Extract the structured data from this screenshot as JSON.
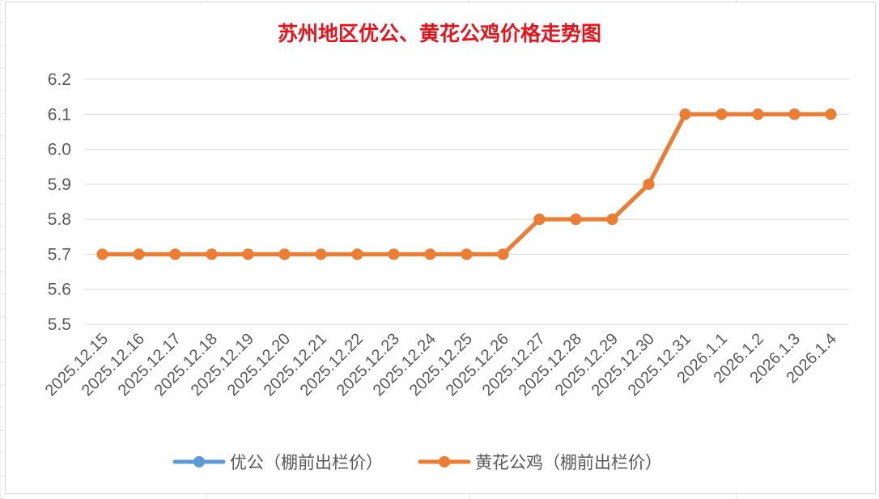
{
  "chart_data": {
    "type": "line",
    "title": "苏州地区优公、黄花公鸡价格走势图",
    "xlabel": "",
    "ylabel": "",
    "ylim": [
      5.5,
      6.2
    ],
    "yticks": [
      "6.2",
      "6.1",
      "6.0",
      "5.9",
      "5.8",
      "5.7",
      "5.6",
      "5.5"
    ],
    "grid": true,
    "legend_position": "bottom",
    "x": [
      "2025.12.15",
      "2025.12.16",
      "2025.12.17",
      "2025.12.18",
      "2025.12.19",
      "2025.12.20",
      "2025.12.21",
      "2025.12.22",
      "2025.12.23",
      "2025.12.24",
      "2025.12.25",
      "2025.12.26",
      "2025.12.27",
      "2025.12.28",
      "2025.12.29",
      "2025.12.30",
      "2025.12.31",
      "2026.1.1",
      "2026.1.2",
      "2026.1.3",
      "2026.1.4"
    ],
    "series": [
      {
        "name": "优公（棚前出栏价）",
        "color": "#5b9bd5",
        "values": [
          5.7,
          5.7,
          5.7,
          5.7,
          5.7,
          5.7,
          5.7,
          5.7,
          5.7,
          5.7,
          5.7,
          5.7,
          5.8,
          5.8,
          5.8,
          5.9,
          6.1,
          6.1,
          6.1,
          6.1,
          6.1
        ]
      },
      {
        "name": "黄花公鸡（棚前出栏价）",
        "color": "#ed7d31",
        "values": [
          5.7,
          5.7,
          5.7,
          5.7,
          5.7,
          5.7,
          5.7,
          5.7,
          5.7,
          5.7,
          5.7,
          5.7,
          5.8,
          5.8,
          5.8,
          5.9,
          6.1,
          6.1,
          6.1,
          6.1,
          6.1
        ]
      }
    ]
  }
}
